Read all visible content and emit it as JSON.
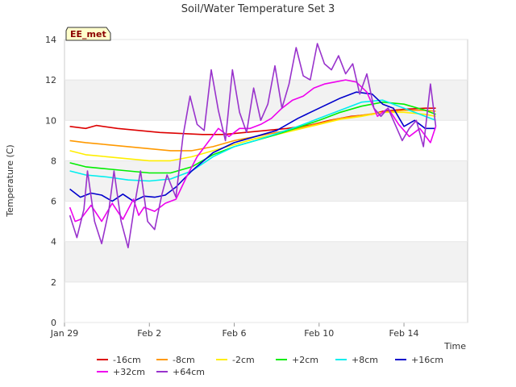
{
  "chart_data": {
    "type": "line",
    "title": "Soil/Water Temperature Set 3",
    "xlabel": "Time",
    "ylabel": "Temperature (C)",
    "badge": "EE_met",
    "xlim": [
      "2024-01-29",
      "2024-02-17"
    ],
    "ylim": [
      0,
      14
    ],
    "x_ticks": [
      {
        "date": "2024-01-29",
        "label": "Jan 29"
      },
      {
        "date": "2024-02-02",
        "label": "Feb 2"
      },
      {
        "date": "2024-02-06",
        "label": "Feb 6"
      },
      {
        "date": "2024-02-10",
        "label": "Feb 10"
      },
      {
        "date": "2024-02-14",
        "label": "Feb 14"
      }
    ],
    "y_ticks": [
      0,
      2,
      4,
      6,
      8,
      10,
      12,
      14
    ],
    "grid_bands": "alternating horizontal shading",
    "legend_position": "bottom",
    "series": [
      {
        "name": "-16cm",
        "color": "#dd0000",
        "points": [
          [
            "2024-01-29T06:00",
            9.7
          ],
          [
            "2024-01-30T00:00",
            9.6
          ],
          [
            "2024-01-30T12:00",
            9.75
          ],
          [
            "2024-01-31T12:00",
            9.6
          ],
          [
            "2024-02-01T12:00",
            9.5
          ],
          [
            "2024-02-02T12:00",
            9.4
          ],
          [
            "2024-02-03T12:00",
            9.35
          ],
          [
            "2024-02-04T12:00",
            9.3
          ],
          [
            "2024-02-05T12:00",
            9.3
          ],
          [
            "2024-02-06T12:00",
            9.4
          ],
          [
            "2024-02-07T12:00",
            9.5
          ],
          [
            "2024-02-08T12:00",
            9.6
          ],
          [
            "2024-02-09T12:00",
            9.75
          ],
          [
            "2024-02-10T12:00",
            10.0
          ],
          [
            "2024-02-11T12:00",
            10.2
          ],
          [
            "2024-02-12T12:00",
            10.3
          ],
          [
            "2024-02-13T00:00",
            10.45
          ],
          [
            "2024-02-14T00:00",
            10.55
          ],
          [
            "2024-02-15T00:00",
            10.6
          ],
          [
            "2024-02-15T12:00",
            10.6
          ]
        ]
      },
      {
        "name": "-8cm",
        "color": "#ff9900",
        "points": [
          [
            "2024-01-29T06:00",
            9.0
          ],
          [
            "2024-01-30T00:00",
            8.9
          ],
          [
            "2024-01-31T00:00",
            8.8
          ],
          [
            "2024-02-01T00:00",
            8.7
          ],
          [
            "2024-02-02T00:00",
            8.6
          ],
          [
            "2024-02-03T00:00",
            8.5
          ],
          [
            "2024-02-04T00:00",
            8.5
          ],
          [
            "2024-02-05T00:00",
            8.7
          ],
          [
            "2024-02-06T00:00",
            9.0
          ],
          [
            "2024-02-07T00:00",
            9.2
          ],
          [
            "2024-02-08T00:00",
            9.4
          ],
          [
            "2024-02-09T00:00",
            9.6
          ],
          [
            "2024-02-10T00:00",
            9.85
          ],
          [
            "2024-02-11T00:00",
            10.1
          ],
          [
            "2024-02-12T00:00",
            10.25
          ],
          [
            "2024-02-13T00:00",
            10.4
          ],
          [
            "2024-02-14T00:00",
            10.5
          ],
          [
            "2024-02-15T00:00",
            10.5
          ],
          [
            "2024-02-15T12:00",
            10.45
          ]
        ]
      },
      {
        "name": "-2cm",
        "color": "#ffee00",
        "points": [
          [
            "2024-01-29T06:00",
            8.5
          ],
          [
            "2024-01-30T00:00",
            8.3
          ],
          [
            "2024-01-31T00:00",
            8.2
          ],
          [
            "2024-02-01T00:00",
            8.1
          ],
          [
            "2024-02-02T00:00",
            8.0
          ],
          [
            "2024-02-03T00:00",
            8.0
          ],
          [
            "2024-02-04T00:00",
            8.2
          ],
          [
            "2024-02-05T00:00",
            8.5
          ],
          [
            "2024-02-06T00:00",
            8.8
          ],
          [
            "2024-02-07T00:00",
            9.1
          ],
          [
            "2024-02-08T00:00",
            9.3
          ],
          [
            "2024-02-09T00:00",
            9.55
          ],
          [
            "2024-02-10T00:00",
            9.8
          ],
          [
            "2024-02-11T00:00",
            10.05
          ],
          [
            "2024-02-12T00:00",
            10.2
          ],
          [
            "2024-02-13T00:00",
            10.4
          ],
          [
            "2024-02-14T00:00",
            10.4
          ],
          [
            "2024-02-15T00:00",
            10.3
          ],
          [
            "2024-02-15T12:00",
            10.2
          ]
        ]
      },
      {
        "name": "+2cm",
        "color": "#00ee00",
        "points": [
          [
            "2024-01-29T06:00",
            7.9
          ],
          [
            "2024-01-30T00:00",
            7.7
          ],
          [
            "2024-01-31T00:00",
            7.6
          ],
          [
            "2024-02-01T00:00",
            7.5
          ],
          [
            "2024-02-02T00:00",
            7.4
          ],
          [
            "2024-02-03T00:00",
            7.4
          ],
          [
            "2024-02-04T00:00",
            7.7
          ],
          [
            "2024-02-05T00:00",
            8.3
          ],
          [
            "2024-02-06T00:00",
            8.7
          ],
          [
            "2024-02-07T00:00",
            9.0
          ],
          [
            "2024-02-08T00:00",
            9.3
          ],
          [
            "2024-02-09T00:00",
            9.65
          ],
          [
            "2024-02-10T00:00",
            10.0
          ],
          [
            "2024-02-11T00:00",
            10.4
          ],
          [
            "2024-02-12T00:00",
            10.7
          ],
          [
            "2024-02-13T00:00",
            10.9
          ],
          [
            "2024-02-14T00:00",
            10.8
          ],
          [
            "2024-02-15T00:00",
            10.5
          ],
          [
            "2024-02-15T12:00",
            10.3
          ]
        ]
      },
      {
        "name": "+8cm",
        "color": "#00eeee",
        "points": [
          [
            "2024-01-29T06:00",
            7.5
          ],
          [
            "2024-01-30T00:00",
            7.3
          ],
          [
            "2024-01-31T00:00",
            7.2
          ],
          [
            "2024-02-01T00:00",
            7.05
          ],
          [
            "2024-02-02T00:00",
            7.0
          ],
          [
            "2024-02-03T00:00",
            7.1
          ],
          [
            "2024-02-04T00:00",
            7.5
          ],
          [
            "2024-02-05T00:00",
            8.2
          ],
          [
            "2024-02-06T00:00",
            8.7
          ],
          [
            "2024-02-07T00:00",
            9.0
          ],
          [
            "2024-02-08T00:00",
            9.35
          ],
          [
            "2024-02-09T00:00",
            9.7
          ],
          [
            "2024-02-10T00:00",
            10.1
          ],
          [
            "2024-02-11T00:00",
            10.5
          ],
          [
            "2024-02-12T00:00",
            10.9
          ],
          [
            "2024-02-13T00:00",
            11.0
          ],
          [
            "2024-02-14T00:00",
            10.6
          ],
          [
            "2024-02-15T00:00",
            10.2
          ],
          [
            "2024-02-15T12:00",
            10.0
          ]
        ]
      },
      {
        "name": "+16cm",
        "color": "#0000cc",
        "points": [
          [
            "2024-01-29T06:00",
            6.6
          ],
          [
            "2024-01-29T18:00",
            6.2
          ],
          [
            "2024-01-30T06:00",
            6.4
          ],
          [
            "2024-01-30T18:00",
            6.3
          ],
          [
            "2024-01-31T06:00",
            6.0
          ],
          [
            "2024-01-31T18:00",
            6.35
          ],
          [
            "2024-02-01T06:00",
            6.0
          ],
          [
            "2024-02-01T18:00",
            6.25
          ],
          [
            "2024-02-02T06:00",
            6.2
          ],
          [
            "2024-02-02T18:00",
            6.3
          ],
          [
            "2024-02-03T06:00",
            6.7
          ],
          [
            "2024-02-04T00:00",
            7.5
          ],
          [
            "2024-02-05T00:00",
            8.4
          ],
          [
            "2024-02-06T00:00",
            8.9
          ],
          [
            "2024-02-07T00:00",
            9.2
          ],
          [
            "2024-02-08T00:00",
            9.5
          ],
          [
            "2024-02-09T00:00",
            10.1
          ],
          [
            "2024-02-10T00:00",
            10.6
          ],
          [
            "2024-02-11T00:00",
            11.1
          ],
          [
            "2024-02-11T18:00",
            11.4
          ],
          [
            "2024-02-12T12:00",
            11.3
          ],
          [
            "2024-02-13T00:00",
            10.8
          ],
          [
            "2024-02-13T12:00",
            10.6
          ],
          [
            "2024-02-14T00:00",
            9.7
          ],
          [
            "2024-02-14T12:00",
            10.0
          ],
          [
            "2024-02-15T00:00",
            9.6
          ],
          [
            "2024-02-15T12:00",
            9.6
          ]
        ]
      },
      {
        "name": "+32cm",
        "color": "#ee00ee",
        "points": [
          [
            "2024-01-29T06:00",
            5.7
          ],
          [
            "2024-01-29T12:00",
            5.0
          ],
          [
            "2024-01-29T18:00",
            5.1
          ],
          [
            "2024-01-30T06:00",
            5.8
          ],
          [
            "2024-01-30T18:00",
            5.0
          ],
          [
            "2024-01-31T06:00",
            5.9
          ],
          [
            "2024-01-31T18:00",
            5.1
          ],
          [
            "2024-02-01T06:00",
            6.1
          ],
          [
            "2024-02-01T12:00",
            5.3
          ],
          [
            "2024-02-01T18:00",
            5.7
          ],
          [
            "2024-02-02T06:00",
            5.5
          ],
          [
            "2024-02-02T18:00",
            5.9
          ],
          [
            "2024-02-03T06:00",
            6.1
          ],
          [
            "2024-02-03T18:00",
            7.2
          ],
          [
            "2024-02-04T06:00",
            8.2
          ],
          [
            "2024-02-04T18:00",
            8.9
          ],
          [
            "2024-02-05T06:00",
            9.6
          ],
          [
            "2024-02-05T18:00",
            9.2
          ],
          [
            "2024-02-06T06:00",
            9.6
          ],
          [
            "2024-02-06T18:00",
            9.6
          ],
          [
            "2024-02-07T06:00",
            9.8
          ],
          [
            "2024-02-07T18:00",
            10.1
          ],
          [
            "2024-02-08T06:00",
            10.6
          ],
          [
            "2024-02-08T18:00",
            11.0
          ],
          [
            "2024-02-09T06:00",
            11.2
          ],
          [
            "2024-02-09T18:00",
            11.6
          ],
          [
            "2024-02-10T06:00",
            11.8
          ],
          [
            "2024-02-10T18:00",
            11.9
          ],
          [
            "2024-02-11T06:00",
            12.0
          ],
          [
            "2024-02-11T18:00",
            11.9
          ],
          [
            "2024-02-12T06:00",
            11.4
          ],
          [
            "2024-02-12T18:00",
            10.2
          ],
          [
            "2024-02-13T06:00",
            10.6
          ],
          [
            "2024-02-13T18:00",
            9.8
          ],
          [
            "2024-02-14T06:00",
            9.2
          ],
          [
            "2024-02-14T18:00",
            9.6
          ],
          [
            "2024-02-15T06:00",
            8.9
          ],
          [
            "2024-02-15T12:00",
            9.7
          ]
        ]
      },
      {
        "name": "+64cm",
        "color": "#9933cc",
        "points": [
          [
            "2024-01-29T06:00",
            5.3
          ],
          [
            "2024-01-29T14:00",
            4.2
          ],
          [
            "2024-01-29T22:00",
            5.6
          ],
          [
            "2024-01-30T02:00",
            7.5
          ],
          [
            "2024-01-30T10:00",
            5.0
          ],
          [
            "2024-01-30T18:00",
            3.9
          ],
          [
            "2024-01-31T02:00",
            5.5
          ],
          [
            "2024-01-31T08:00",
            7.5
          ],
          [
            "2024-01-31T16:00",
            5.0
          ],
          [
            "2024-02-01T00:00",
            3.7
          ],
          [
            "2024-02-01T08:00",
            6.0
          ],
          [
            "2024-02-01T14:00",
            7.5
          ],
          [
            "2024-02-01T22:00",
            5.0
          ],
          [
            "2024-02-02T06:00",
            4.6
          ],
          [
            "2024-02-02T14:00",
            6.3
          ],
          [
            "2024-02-02T20:00",
            7.3
          ],
          [
            "2024-02-03T06:00",
            6.2
          ],
          [
            "2024-02-03T14:00",
            9.2
          ],
          [
            "2024-02-03T22:00",
            11.2
          ],
          [
            "2024-02-04T06:00",
            9.8
          ],
          [
            "2024-02-04T14:00",
            9.5
          ],
          [
            "2024-02-04T22:00",
            12.5
          ],
          [
            "2024-02-05T06:00",
            10.5
          ],
          [
            "2024-02-05T14:00",
            9.0
          ],
          [
            "2024-02-05T22:00",
            12.5
          ],
          [
            "2024-02-06T06:00",
            10.4
          ],
          [
            "2024-02-06T14:00",
            9.4
          ],
          [
            "2024-02-06T22:00",
            11.6
          ],
          [
            "2024-02-07T06:00",
            10.0
          ],
          [
            "2024-02-07T14:00",
            10.8
          ],
          [
            "2024-02-07T22:00",
            12.7
          ],
          [
            "2024-02-08T06:00",
            10.6
          ],
          [
            "2024-02-08T14:00",
            11.8
          ],
          [
            "2024-02-08T22:00",
            13.6
          ],
          [
            "2024-02-09T06:00",
            12.2
          ],
          [
            "2024-02-09T14:00",
            12.0
          ],
          [
            "2024-02-09T22:00",
            13.8
          ],
          [
            "2024-02-10T06:00",
            12.8
          ],
          [
            "2024-02-10T14:00",
            12.5
          ],
          [
            "2024-02-10T22:00",
            13.2
          ],
          [
            "2024-02-11T06:00",
            12.3
          ],
          [
            "2024-02-11T14:00",
            12.8
          ],
          [
            "2024-02-11T22:00",
            11.3
          ],
          [
            "2024-02-12T06:00",
            12.3
          ],
          [
            "2024-02-12T14:00",
            10.6
          ],
          [
            "2024-02-12T22:00",
            10.2
          ],
          [
            "2024-02-13T06:00",
            10.6
          ],
          [
            "2024-02-13T14:00",
            9.8
          ],
          [
            "2024-02-13T22:00",
            9.0
          ],
          [
            "2024-02-14T06:00",
            9.6
          ],
          [
            "2024-02-14T14:00",
            10.0
          ],
          [
            "2024-02-14T22:00",
            8.7
          ],
          [
            "2024-02-15T06:00",
            11.8
          ],
          [
            "2024-02-15T12:00",
            9.7
          ]
        ]
      }
    ]
  }
}
